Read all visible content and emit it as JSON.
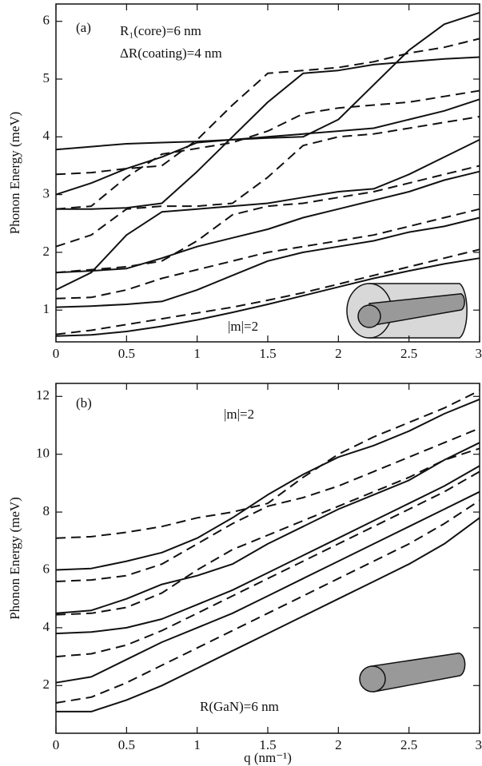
{
  "chart_data": [
    {
      "type": "line",
      "ylabel": "Phonon Energy (meV)",
      "annotations": [
        "(a)",
        "R₁(core)=6 nm",
        "ΔR(coating)=4 nm",
        "|m|=2"
      ],
      "x": [
        0,
        0.25,
        0.5,
        0.75,
        1,
        1.25,
        1.5,
        1.75,
        2,
        2.25,
        2.5,
        2.75,
        3
      ],
      "xlim": [
        0,
        3
      ],
      "xticks": [
        0,
        0.5,
        1,
        1.5,
        2,
        2.5,
        3
      ],
      "ylim": [
        0.45,
        6.3
      ],
      "yticks": [
        1,
        2,
        3,
        4,
        5,
        6
      ],
      "series": [
        {
          "color": "#111111",
          "style": "solid",
          "values": [
            0.55,
            0.57,
            0.63,
            0.72,
            0.83,
            0.96,
            1.1,
            1.25,
            1.4,
            1.55,
            1.68,
            1.8,
            1.9
          ]
        },
        {
          "color": "#111111",
          "style": "solid",
          "values": [
            1.05,
            1.07,
            1.1,
            1.15,
            1.35,
            1.6,
            1.85,
            2.0,
            2.1,
            2.2,
            2.35,
            2.45,
            2.6
          ]
        },
        {
          "color": "#111111",
          "style": "solid",
          "values": [
            1.65,
            1.68,
            1.72,
            1.9,
            2.1,
            2.25,
            2.4,
            2.6,
            2.75,
            2.9,
            3.05,
            3.25,
            3.4
          ]
        },
        {
          "color": "#111111",
          "style": "solid",
          "values": [
            1.35,
            1.65,
            2.3,
            2.7,
            2.75,
            2.8,
            2.85,
            2.95,
            3.05,
            3.1,
            3.35,
            3.65,
            3.95
          ]
        },
        {
          "color": "#111111",
          "style": "solid",
          "values": [
            2.75,
            2.75,
            2.77,
            2.85,
            3.4,
            4.0,
            4.6,
            5.1,
            5.15,
            5.25,
            5.3,
            5.35,
            5.38
          ]
        },
        {
          "color": "#111111",
          "style": "solid",
          "values": [
            3.0,
            3.2,
            3.45,
            3.65,
            3.9,
            3.95,
            4.0,
            4.05,
            4.1,
            4.15,
            4.3,
            4.45,
            4.65
          ]
        },
        {
          "color": "#111111",
          "style": "solid",
          "values": [
            3.78,
            3.83,
            3.88,
            3.9,
            3.92,
            3.95,
            3.98,
            4.0,
            4.3,
            4.9,
            5.5,
            5.95,
            6.15
          ]
        },
        {
          "color": "#111111",
          "style": "dashed",
          "values": [
            0.58,
            0.65,
            0.75,
            0.85,
            0.95,
            1.05,
            1.17,
            1.3,
            1.45,
            1.6,
            1.75,
            1.9,
            2.05
          ]
        },
        {
          "color": "#111111",
          "style": "dashed",
          "values": [
            1.2,
            1.22,
            1.35,
            1.55,
            1.7,
            1.85,
            2.0,
            2.1,
            2.2,
            2.3,
            2.45,
            2.6,
            2.75
          ]
        },
        {
          "color": "#111111",
          "style": "dashed",
          "values": [
            1.65,
            1.7,
            1.75,
            1.85,
            2.2,
            2.65,
            2.8,
            2.85,
            2.95,
            3.05,
            3.2,
            3.35,
            3.5
          ]
        },
        {
          "color": "#111111",
          "style": "dashed",
          "values": [
            2.1,
            2.3,
            2.75,
            2.8,
            2.8,
            2.85,
            3.3,
            3.85,
            4.0,
            4.05,
            4.15,
            4.25,
            4.35
          ]
        },
        {
          "color": "#111111",
          "style": "dashed",
          "values": [
            2.75,
            2.8,
            3.3,
            3.7,
            3.8,
            3.9,
            4.1,
            4.4,
            4.5,
            4.55,
            4.6,
            4.7,
            4.8
          ]
        },
        {
          "color": "#111111",
          "style": "dashed",
          "values": [
            3.35,
            3.38,
            3.45,
            3.5,
            3.95,
            4.55,
            5.1,
            5.15,
            5.2,
            5.3,
            5.45,
            5.55,
            5.7
          ]
        }
      ]
    },
    {
      "type": "line",
      "ylabel": "Phonon Energy (meV)",
      "xlabel": "q (nm⁻¹)",
      "annotations": [
        "(b)",
        "|m|=2",
        "R(GaN)=6 nm"
      ],
      "x": [
        0,
        0.25,
        0.5,
        0.75,
        1,
        1.25,
        1.5,
        1.75,
        2,
        2.25,
        2.5,
        2.75,
        3
      ],
      "xlim": [
        0,
        3
      ],
      "xticks": [
        0,
        0.5,
        1,
        1.5,
        2,
        2.5,
        3
      ],
      "ylim": [
        0.35,
        12.45
      ],
      "yticks": [
        2,
        4,
        6,
        8,
        10,
        12
      ],
      "series": [
        {
          "color": "#111111",
          "style": "solid",
          "values": [
            1.1,
            1.1,
            1.5,
            2.0,
            2.6,
            3.2,
            3.8,
            4.4,
            5.0,
            5.6,
            6.2,
            6.9,
            7.8
          ]
        },
        {
          "color": "#111111",
          "style": "solid",
          "values": [
            2.1,
            2.3,
            2.9,
            3.5,
            4.0,
            4.5,
            5.1,
            5.7,
            6.3,
            6.9,
            7.5,
            8.1,
            8.7
          ]
        },
        {
          "color": "#111111",
          "style": "solid",
          "values": [
            3.8,
            3.85,
            4.0,
            4.3,
            4.8,
            5.3,
            5.9,
            6.5,
            7.1,
            7.7,
            8.3,
            8.9,
            9.6
          ]
        },
        {
          "color": "#111111",
          "style": "solid",
          "values": [
            4.5,
            4.6,
            5.0,
            5.5,
            5.8,
            6.2,
            6.9,
            7.5,
            8.1,
            8.6,
            9.1,
            9.8,
            10.4
          ]
        },
        {
          "color": "#111111",
          "style": "solid",
          "values": [
            6.0,
            6.05,
            6.3,
            6.6,
            7.1,
            7.8,
            8.6,
            9.3,
            9.9,
            10.3,
            10.8,
            11.4,
            11.9
          ]
        },
        {
          "color": "#111111",
          "style": "dashed",
          "values": [
            1.4,
            1.6,
            2.1,
            2.7,
            3.3,
            3.9,
            4.5,
            5.1,
            5.7,
            6.3,
            6.9,
            7.6,
            8.4
          ]
        },
        {
          "color": "#111111",
          "style": "dashed",
          "values": [
            3.0,
            3.1,
            3.4,
            3.9,
            4.5,
            5.1,
            5.7,
            6.3,
            6.9,
            7.5,
            8.1,
            8.7,
            9.4
          ]
        },
        {
          "color": "#111111",
          "style": "dashed",
          "values": [
            4.45,
            4.5,
            4.7,
            5.2,
            6.0,
            6.7,
            7.2,
            7.7,
            8.2,
            8.7,
            9.2,
            9.8,
            10.2
          ]
        },
        {
          "color": "#111111",
          "style": "dashed",
          "values": [
            5.6,
            5.65,
            5.8,
            6.2,
            6.9,
            7.6,
            8.2,
            8.5,
            8.9,
            9.4,
            9.9,
            10.4,
            10.9
          ]
        },
        {
          "color": "#111111",
          "style": "dashed",
          "values": [
            7.1,
            7.15,
            7.3,
            7.5,
            7.8,
            8.0,
            8.3,
            9.2,
            10.0,
            10.6,
            11.1,
            11.6,
            12.2
          ]
        }
      ]
    }
  ]
}
